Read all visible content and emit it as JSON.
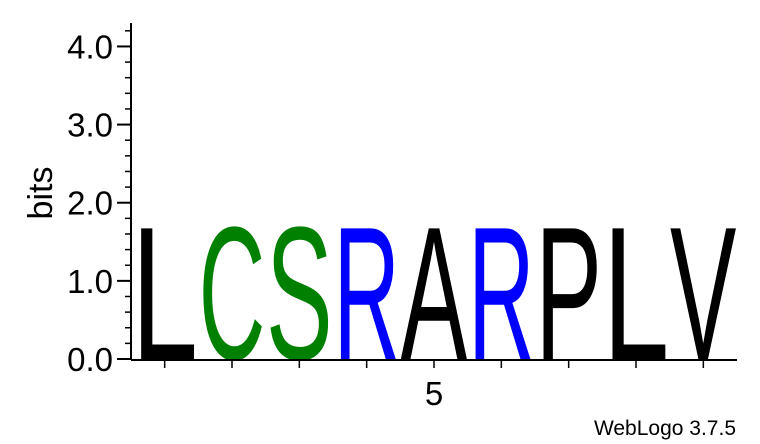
{
  "chart_data": {
    "type": "sequence-logo",
    "ylabel": "bits",
    "ylim": [
      0,
      4.3
    ],
    "yticks": [
      {
        "value": 0,
        "label": "0.0"
      },
      {
        "value": 1,
        "label": "1.0"
      },
      {
        "value": 2,
        "label": "2.0"
      },
      {
        "value": 3,
        "label": "3.0"
      },
      {
        "value": 4,
        "label": "4.0"
      }
    ],
    "yminor_step": 0.2,
    "xlim": [
      0.5,
      9.5
    ],
    "xticks": [
      1,
      2,
      3,
      4,
      5,
      6,
      7,
      8,
      9
    ],
    "xtick_labels": [
      {
        "value": 5,
        "label": "5"
      }
    ],
    "positions": [
      {
        "position": 1,
        "letter": "L",
        "bits": 1.75,
        "color": "#000000"
      },
      {
        "position": 2,
        "letter": "C",
        "bits": 1.75,
        "color": "#008000"
      },
      {
        "position": 3,
        "letter": "S",
        "bits": 1.75,
        "color": "#008000"
      },
      {
        "position": 4,
        "letter": "R",
        "bits": 1.75,
        "color": "#0000ff"
      },
      {
        "position": 5,
        "letter": "A",
        "bits": 1.75,
        "color": "#000000"
      },
      {
        "position": 6,
        "letter": "R",
        "bits": 1.75,
        "color": "#0000ff"
      },
      {
        "position": 7,
        "letter": "P",
        "bits": 1.75,
        "color": "#000000"
      },
      {
        "position": 8,
        "letter": "L",
        "bits": 1.75,
        "color": "#000000"
      },
      {
        "position": 9,
        "letter": "V",
        "bits": 1.75,
        "color": "#000000"
      }
    ],
    "credit": "WebLogo 3.7.5"
  }
}
